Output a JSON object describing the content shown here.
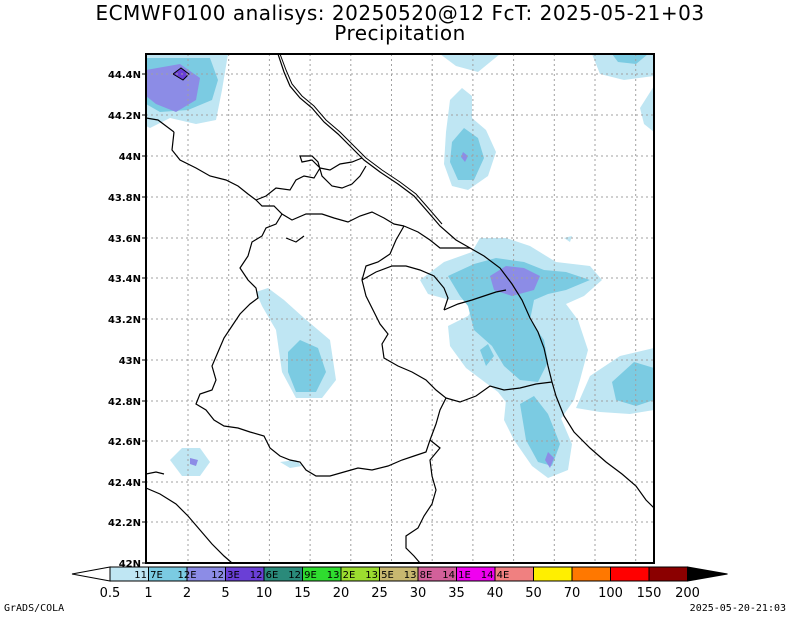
{
  "title_line1": "ECMWF0100 analisys: 20250520@12 FcT: 2025-05-21+03",
  "title_line2": "Precipitation",
  "lat_labels": [
    "44.4N",
    "44.2N",
    "44N",
    "43.8N",
    "43.6N",
    "43.4N",
    "43.2N",
    "43N",
    "42.8N",
    "42.6N",
    "42.4N",
    "42.2N",
    "42N"
  ],
  "colorbar": {
    "values": [
      "0.5",
      "1",
      "2",
      "5",
      "10",
      "15",
      "20",
      "25",
      "30",
      "35",
      "40",
      "50",
      "70",
      "100",
      "150",
      "200"
    ],
    "inner_labels": [
      "11.7E",
      "12E",
      "12.3E",
      "12.6E",
      "12.9E",
      "13.2E",
      "13.5E",
      "13.8E",
      "14.1E",
      "14.4E"
    ],
    "colors": [
      "#ffffff",
      "#bfe6f3",
      "#7bcbe2",
      "#8c8ce6",
      "#6a3fd6",
      "#2a8a7a",
      "#2fdc2f",
      "#9cdc2f",
      "#c8b870",
      "#d2609a",
      "#f000f0",
      "#f08080",
      "#ffef00",
      "#ff7800",
      "#ff0000",
      "#8b0000",
      "#000000"
    ]
  },
  "footer_left": "GrADS/COLA",
  "footer_right": "2025-05-20-21:03"
}
